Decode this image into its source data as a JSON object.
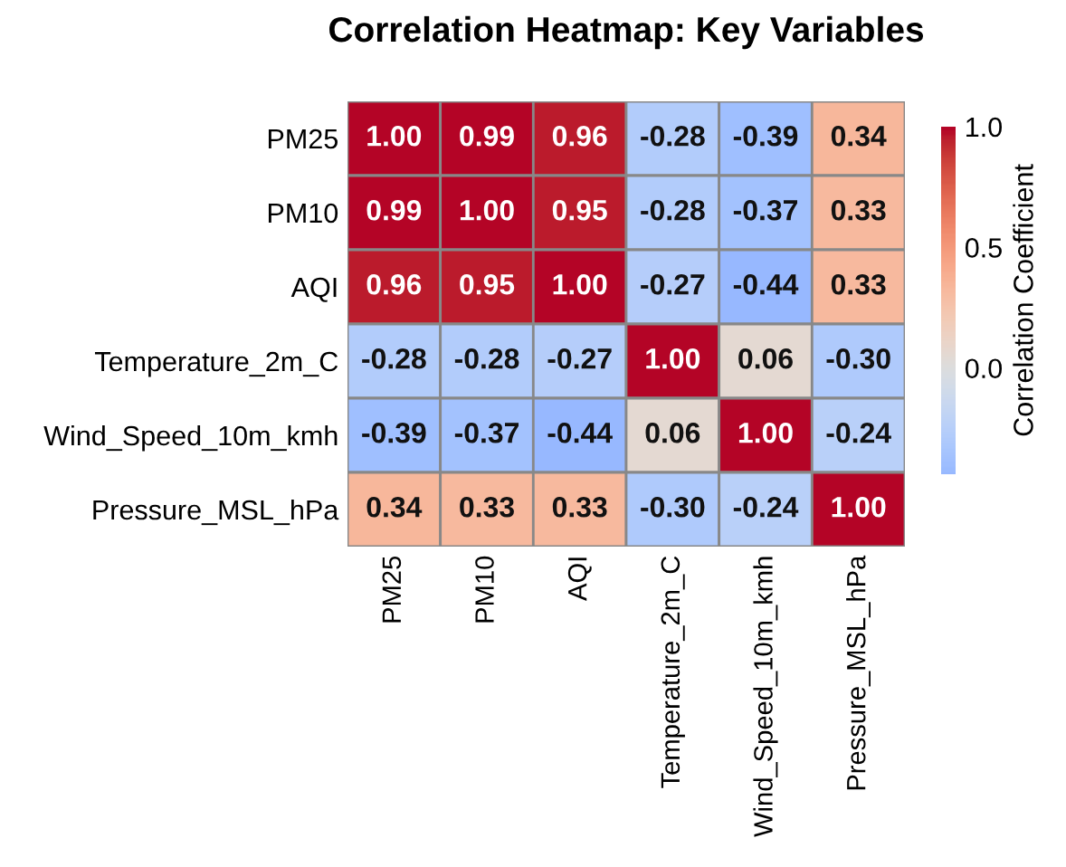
{
  "chart_data": {
    "type": "heatmap",
    "title": "Correlation Heatmap: Key Variables",
    "clabel": "Correlation Coefficient",
    "categories": [
      "PM25",
      "PM10",
      "AQI",
      "Temperature_2m_C",
      "Wind_Speed_10m_kmh",
      "Pressure_MSL_hPa"
    ],
    "y_categories": [
      "PM25",
      "PM10",
      "AQI",
      "Temperature_2m_C",
      "Wind_Speed_10m_kmh",
      "Pressure_MSL_hPa"
    ],
    "cells": [
      [
        1.0,
        0.99,
        0.96,
        -0.28,
        -0.39,
        0.34
      ],
      [
        0.99,
        1.0,
        0.95,
        -0.28,
        -0.37,
        0.33
      ],
      [
        0.96,
        0.95,
        1.0,
        -0.27,
        -0.44,
        0.33
      ],
      [
        -0.28,
        -0.28,
        -0.27,
        1.0,
        0.06,
        -0.3
      ],
      [
        -0.39,
        -0.37,
        -0.44,
        0.06,
        1.0,
        -0.24
      ],
      [
        0.34,
        0.33,
        0.33,
        -0.3,
        -0.24,
        1.0
      ]
    ],
    "cell_labels": [
      [
        "1.00",
        "0.99",
        "0.96",
        "-0.28",
        "-0.39",
        "0.34"
      ],
      [
        "0.99",
        "1.00",
        "0.95",
        "-0.28",
        "-0.37",
        "0.33"
      ],
      [
        "0.96",
        "0.95",
        "1.00",
        "-0.27",
        "-0.44",
        "0.33"
      ],
      [
        "-0.28",
        "-0.28",
        "-0.27",
        "1.00",
        "0.06",
        "-0.30"
      ],
      [
        "-0.39",
        "-0.37",
        "-0.44",
        "0.06",
        "1.00",
        "-0.24"
      ],
      [
        "0.34",
        "0.33",
        "0.33",
        "-0.30",
        "-0.24",
        "1.00"
      ]
    ],
    "clim": [
      -0.44,
      1.0
    ],
    "cticks": [
      {
        "value": 0,
        "label": "0.0"
      },
      0.5,
      {
        "value": 1,
        "label": "1.0"
      }
    ]
  }
}
